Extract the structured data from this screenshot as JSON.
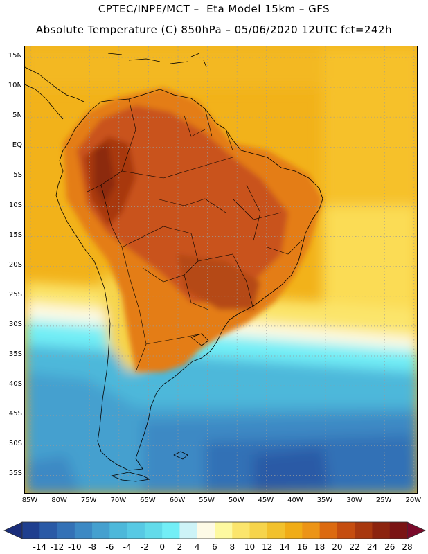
{
  "header": {
    "line1": "CPTEC/INPE/MCT –  Eta Model 15km – GFS",
    "line2": "Absolute Temperature (C) 850hPa – 05/06/2020 12UTC fct=242h"
  },
  "map": {
    "lat_labels": [
      "15N",
      "10N",
      "5N",
      "EQ",
      "5S",
      "10S",
      "15S",
      "20S",
      "25S",
      "30S",
      "35S",
      "40S",
      "45S",
      "50S",
      "55S"
    ],
    "lon_labels": [
      "85W",
      "80W",
      "75W",
      "70W",
      "65W",
      "60W",
      "55W",
      "50W",
      "45W",
      "40W",
      "35W",
      "30W",
      "25W",
      "20W"
    ],
    "ocean_color": "#f2b21a",
    "land_hot_color": "#b5400e",
    "cold_color": "#3fb6dd",
    "deep_cold_color": "#2b68ad"
  },
  "colorbar": {
    "labels": [
      "-14",
      "-12",
      "-10",
      "-8",
      "-6",
      "-4",
      "-2",
      "0",
      "2",
      "4",
      "6",
      "8",
      "10",
      "12",
      "14",
      "16",
      "18",
      "20",
      "22",
      "24",
      "26",
      "28"
    ],
    "colors": [
      "#1f3f8f",
      "#2a5aa6",
      "#3371b6",
      "#3c89c4",
      "#45a0cf",
      "#4db8da",
      "#57c9e4",
      "#62dbea",
      "#72eef6",
      "#cdf3f7",
      "#fdfae6",
      "#fdf9a0",
      "#fbe56c",
      "#f6d44b",
      "#f2c12c",
      "#f0ac16",
      "#ec9416",
      "#dc6a10",
      "#c54d0f",
      "#a8380e",
      "#8c240e",
      "#7a1414"
    ],
    "under_color": "#1a2d7a",
    "over_color": "#7a0a2a"
  }
}
